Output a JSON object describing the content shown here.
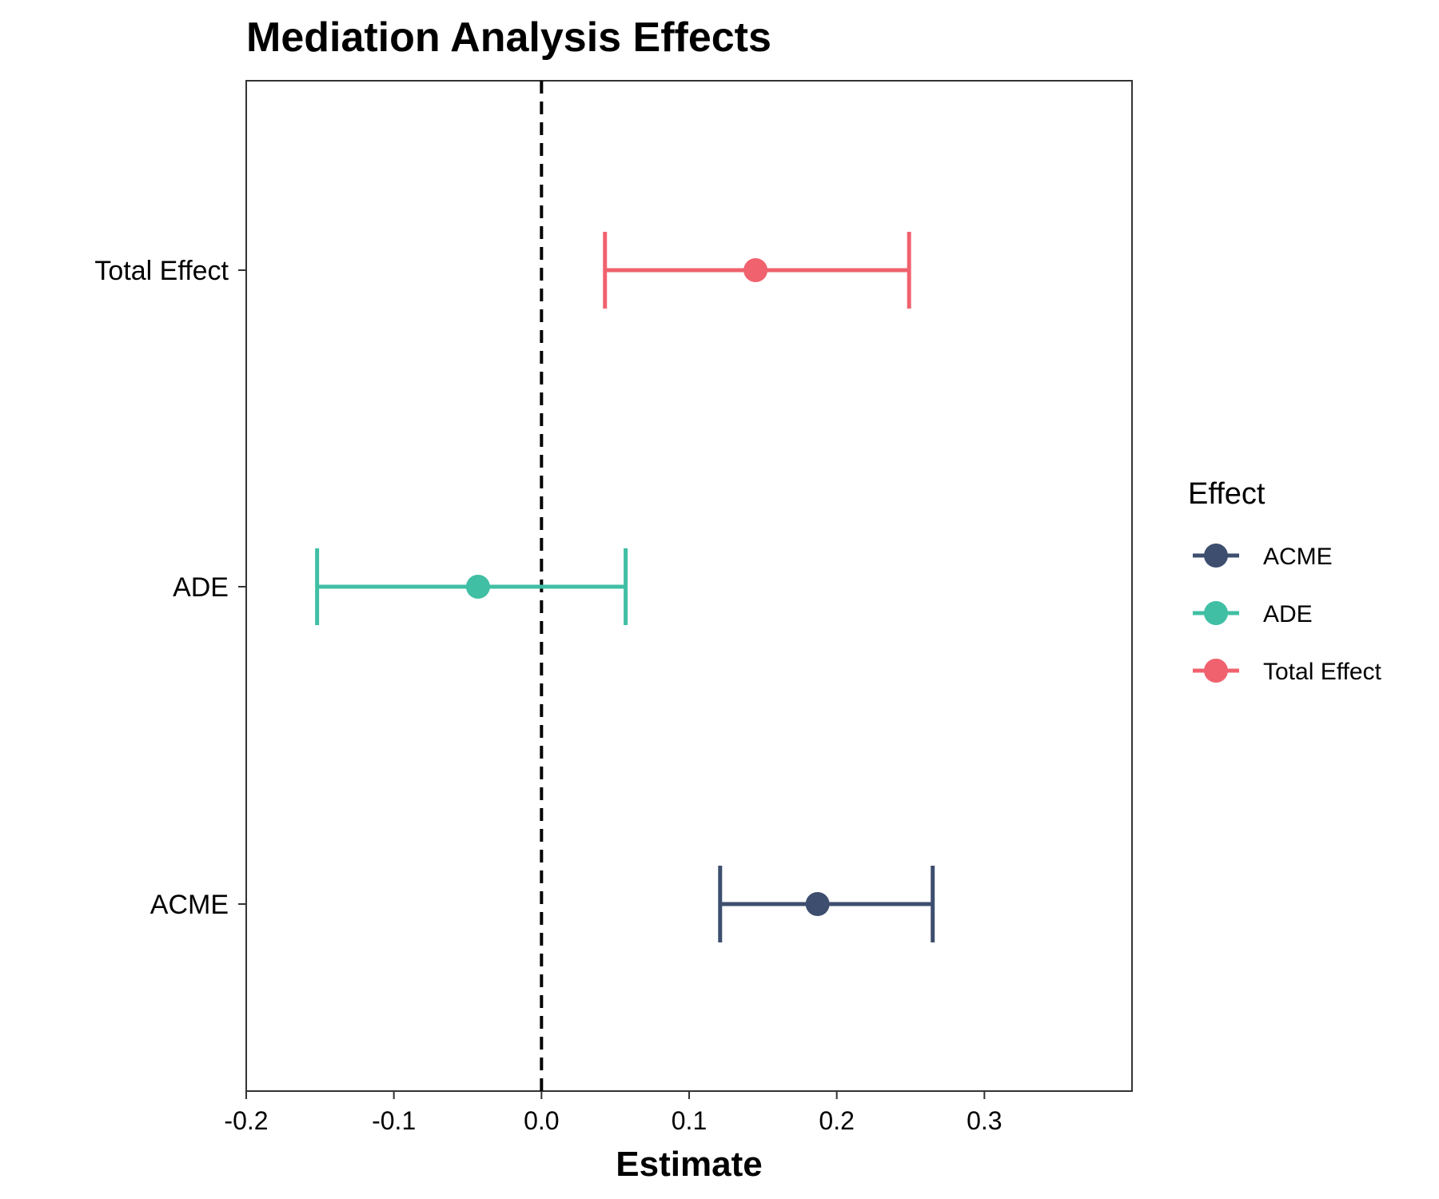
{
  "chart_data": {
    "type": "forest",
    "title": "Mediation Analysis Effects",
    "xlabel": "Estimate",
    "ylabel": "",
    "xlim": [
      -0.2,
      0.4
    ],
    "x_ticks": [
      -0.2,
      -0.1,
      0.0,
      0.1,
      0.2,
      0.3
    ],
    "x_tick_labels": [
      "-0.2",
      "-0.1",
      "0.0",
      "0.1",
      "0.2",
      "0.3"
    ],
    "categories": [
      "Total Effect",
      "ADE",
      "ACME"
    ],
    "reference_line": {
      "x": 0,
      "style": "dashed",
      "color": "#000000"
    },
    "grid": false,
    "legend": {
      "title": "Effect",
      "position": "right",
      "entries": [
        {
          "label": "ACME",
          "color": "#3D4E6E"
        },
        {
          "label": "ADE",
          "color": "#40BFA4"
        },
        {
          "label": "Total Effect",
          "color": "#F0626E"
        }
      ]
    },
    "series": [
      {
        "name": "Total Effect",
        "estimate": 0.145,
        "lower": 0.043,
        "upper": 0.249,
        "color": "#F0626E"
      },
      {
        "name": "ADE",
        "estimate": -0.043,
        "lower": -0.152,
        "upper": 0.057,
        "color": "#40BFA4"
      },
      {
        "name": "ACME",
        "estimate": 0.187,
        "lower": 0.121,
        "upper": 0.265,
        "color": "#3D4E6E"
      }
    ]
  }
}
